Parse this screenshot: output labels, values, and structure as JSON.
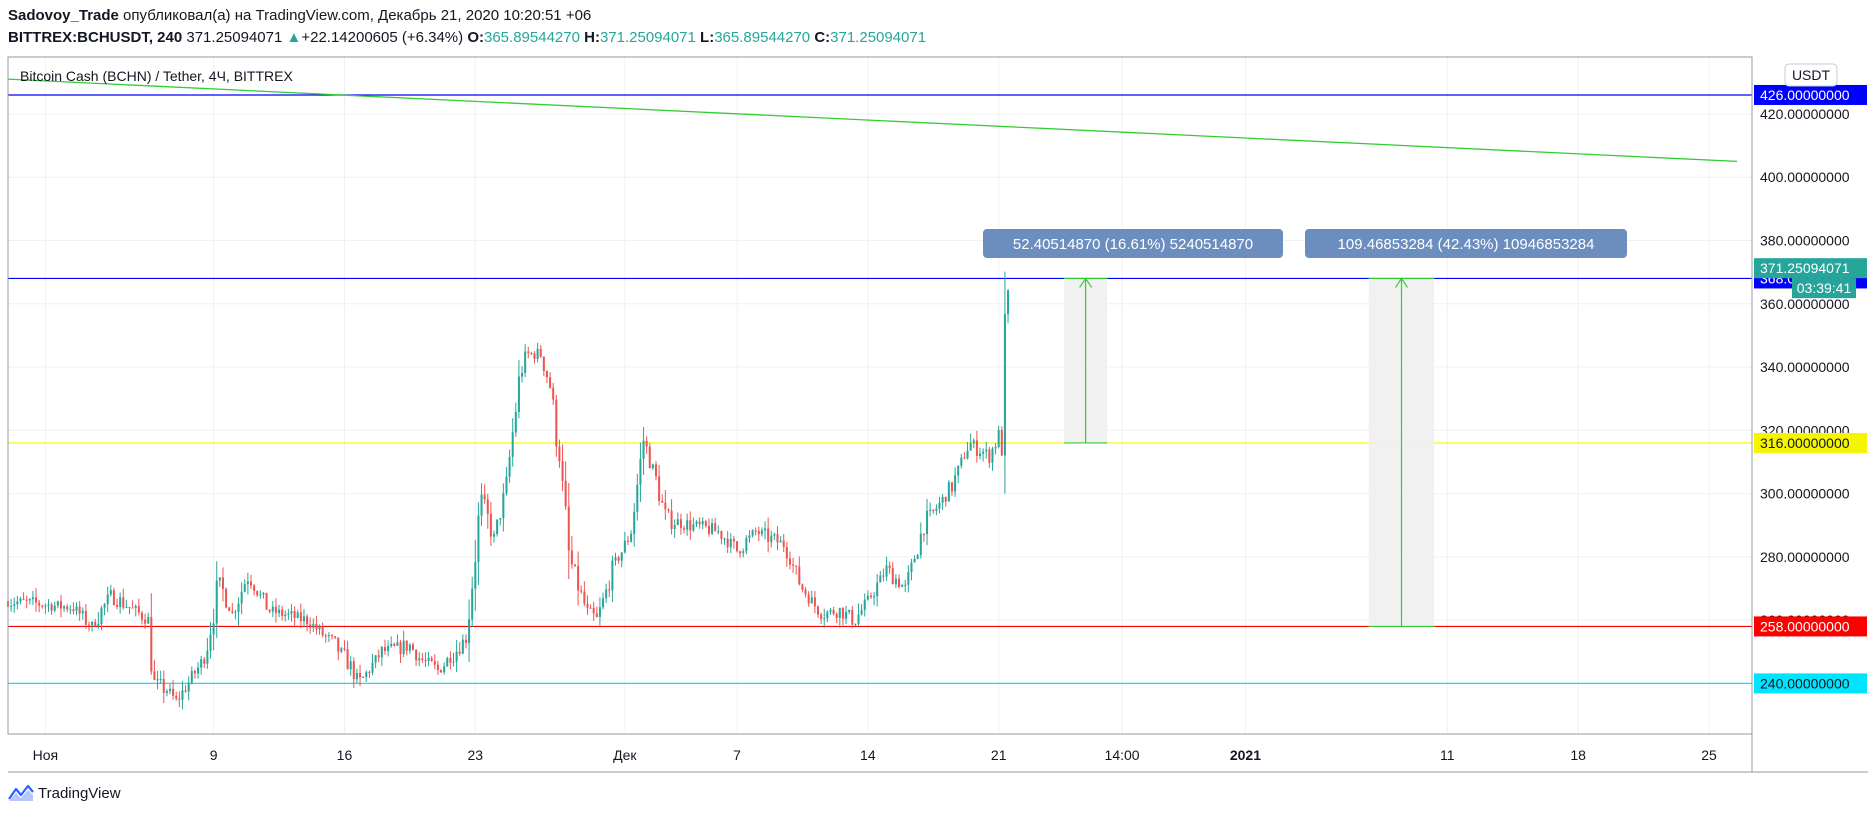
{
  "header": {
    "author": "Sadovoy_Trade",
    "published_text": " опубликовал(а) на TradingView.com, Декабрь 21, 2020 10:20:51 +06",
    "symbol": "BITTREX:BCHUSDT, 240",
    "last": "371.25094071",
    "change_arrow": "▲",
    "change": "+22.14200605 (+6.34%)",
    "o_label": "O:",
    "o": "365.89544270",
    "h_label": "H:",
    "h": "371.25094071",
    "l_label": "L:",
    "l": "365.89544270",
    "c_label": "C:",
    "c": "371.25094071"
  },
  "chart_title": "Bitcoin Cash (BCHN) / Tether, 4Ч, BITTREX",
  "currency_badge": "USDT",
  "countdown": "03:39:41",
  "footer": {
    "brand": "TradingView",
    "logo_icon": "tradingview-logo-icon"
  },
  "colors": {
    "up": "#26a69a",
    "down": "#ef5350",
    "blue_line": "#0000ff",
    "yellow_line": "#f5f500",
    "red_line": "#ff0000",
    "cyan_line": "#00e5ff",
    "green_trend": "#33cc33",
    "measure_label": "#6c8ebf"
  },
  "chart_data": {
    "type": "candlestick",
    "ylim": [
      224,
      438
    ],
    "y_ticks": [
      {
        "value": 420,
        "label": "420.00000000"
      },
      {
        "value": 400,
        "label": "400.00000000"
      },
      {
        "value": 380,
        "label": "380.00000000"
      },
      {
        "value": 360,
        "label": "360.00000000"
      },
      {
        "value": 340,
        "label": "340.00000000"
      },
      {
        "value": 320,
        "label": "320.00000000"
      },
      {
        "value": 300,
        "label": "300.00000000"
      },
      {
        "value": 280,
        "label": "280.00000000"
      },
      {
        "value": 260,
        "label": "260.00000000"
      }
    ],
    "x_ticks": [
      {
        "label": "Ноя",
        "day": -1,
        "bold": false
      },
      {
        "label": "9",
        "day": 8,
        "bold": false
      },
      {
        "label": "16",
        "day": 15,
        "bold": false
      },
      {
        "label": "23",
        "day": 22,
        "bold": false
      },
      {
        "label": "Дек",
        "day": 30,
        "bold": false
      },
      {
        "label": "7",
        "day": 36,
        "bold": false
      },
      {
        "label": "14",
        "day": 43,
        "bold": false
      },
      {
        "label": "21",
        "day": 50,
        "bold": false
      },
      {
        "label": "14:00",
        "day": 56.6,
        "bold": false
      },
      {
        "label": "2021",
        "day": 63.2,
        "bold": true
      },
      {
        "label": "11",
        "day": 74,
        "bold": false
      },
      {
        "label": "18",
        "day": 81,
        "bold": false
      },
      {
        "label": "25",
        "day": 88,
        "bold": false
      }
    ],
    "horizontal_levels": [
      {
        "value": 426,
        "label": "426.00000000",
        "color": "#0000ff"
      },
      {
        "value": 368,
        "label": "368.00000000",
        "color": "#0000ff"
      },
      {
        "value": 316,
        "label": "316.00000000",
        "color": "#f5f500"
      },
      {
        "value": 258,
        "label": "258.00000000",
        "color": "#ff0000"
      },
      {
        "value": 240,
        "label": "240.00000000",
        "color": "#00e5ff"
      }
    ],
    "last_price": {
      "value": 371.25,
      "label": "371.25094071"
    },
    "trendline": {
      "from": {
        "day": -3,
        "value": 431
      },
      "to": {
        "day": 89.5,
        "value": 405
      }
    },
    "measures": [
      {
        "from_day": 53.5,
        "to_day": 55.8,
        "low": 316,
        "high": 368,
        "label": "52.40514870 (16.61%) 5240514870"
      },
      {
        "from_day": 69.8,
        "to_day": 73.3,
        "low": 258,
        "high": 368,
        "label": "109.46853284 (42.43%) 10946853284"
      }
    ],
    "anchors": [
      {
        "day": -3,
        "price": 266
      },
      {
        "day": 0.5,
        "price": 264
      },
      {
        "day": 1.5,
        "price": 258
      },
      {
        "day": 2.5,
        "price": 268
      },
      {
        "day": 4.5,
        "price": 260
      },
      {
        "day": 4.8,
        "price": 240
      },
      {
        "day": 5.5,
        "price": 238
      },
      {
        "day": 6.0,
        "price": 234
      },
      {
        "day": 7.5,
        "price": 248
      },
      {
        "day": 8.3,
        "price": 272
      },
      {
        "day": 9.0,
        "price": 262
      },
      {
        "day": 9.8,
        "price": 274
      },
      {
        "day": 11.0,
        "price": 263
      },
      {
        "day": 13.0,
        "price": 260
      },
      {
        "day": 14.5,
        "price": 252
      },
      {
        "day": 15.3,
        "price": 246
      },
      {
        "day": 15.8,
        "price": 240
      },
      {
        "day": 17.0,
        "price": 250
      },
      {
        "day": 18.5,
        "price": 252
      },
      {
        "day": 19.0,
        "price": 248
      },
      {
        "day": 20.0,
        "price": 244
      },
      {
        "day": 21.5,
        "price": 254
      },
      {
        "day": 22.3,
        "price": 298
      },
      {
        "day": 23.0,
        "price": 286
      },
      {
        "day": 23.6,
        "price": 300
      },
      {
        "day": 24.4,
        "price": 338
      },
      {
        "day": 24.8,
        "price": 344
      },
      {
        "day": 25.5,
        "price": 344
      },
      {
        "day": 26.0,
        "price": 334
      },
      {
        "day": 26.5,
        "price": 312
      },
      {
        "day": 27.0,
        "price": 280
      },
      {
        "day": 28.0,
        "price": 262
      },
      {
        "day": 28.5,
        "price": 260
      },
      {
        "day": 29.5,
        "price": 278
      },
      {
        "day": 30.3,
        "price": 287
      },
      {
        "day": 31.0,
        "price": 317
      },
      {
        "day": 31.5,
        "price": 308
      },
      {
        "day": 32.2,
        "price": 292
      },
      {
        "day": 33.5,
        "price": 290
      },
      {
        "day": 35.0,
        "price": 288
      },
      {
        "day": 36.0,
        "price": 282
      },
      {
        "day": 37.0,
        "price": 288
      },
      {
        "day": 38.5,
        "price": 284
      },
      {
        "day": 39.5,
        "price": 270
      },
      {
        "day": 40.5,
        "price": 262
      },
      {
        "day": 41.5,
        "price": 263
      },
      {
        "day": 42.3,
        "price": 260
      },
      {
        "day": 43.0,
        "price": 266
      },
      {
        "day": 44.0,
        "price": 276
      },
      {
        "day": 45.0,
        "price": 270
      },
      {
        "day": 46.0,
        "price": 290
      },
      {
        "day": 47.5,
        "price": 302
      },
      {
        "day": 48.4,
        "price": 316
      },
      {
        "day": 49.5,
        "price": 312
      },
      {
        "day": 50.0,
        "price": 318
      },
      {
        "day": 50.2,
        "price": 314
      },
      {
        "day": 50.3,
        "price": 340
      },
      {
        "day": 50.45,
        "price": 360
      },
      {
        "day": 50.62,
        "price": 366
      }
    ]
  }
}
